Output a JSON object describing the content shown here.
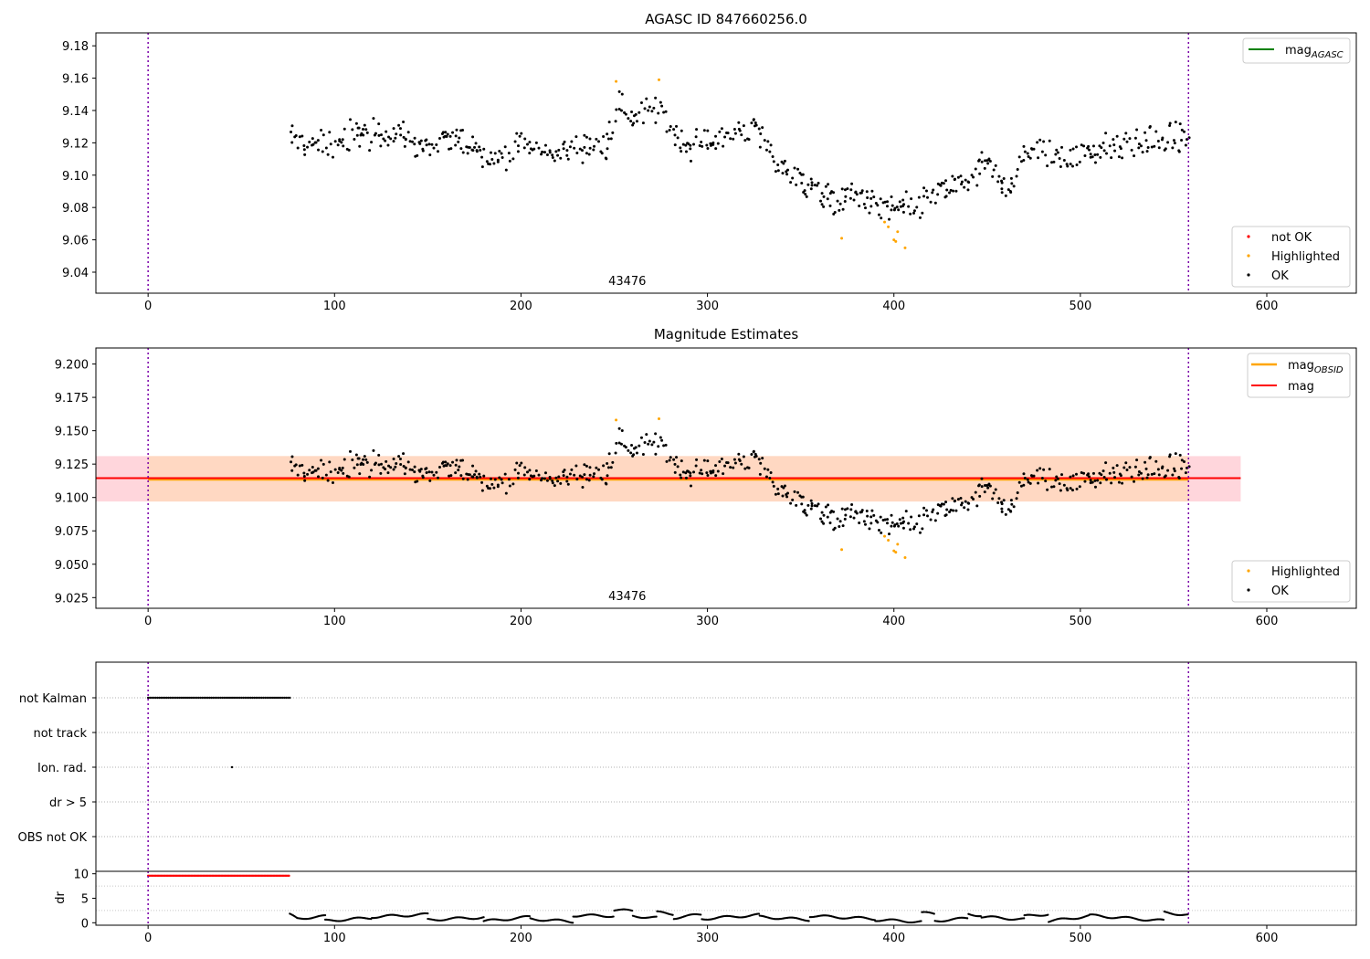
{
  "chart_data": [
    {
      "type": "scatter",
      "title": "AGASC ID 847660256.0",
      "xlim": [
        -28,
        648
      ],
      "ylim": [
        9.027,
        9.188
      ],
      "xticks": [
        0,
        100,
        200,
        300,
        400,
        500,
        600
      ],
      "yticks": [
        9.04,
        9.06,
        9.08,
        9.1,
        9.12,
        9.14,
        9.16,
        9.18
      ],
      "ytick_decimals": 2,
      "obsid_label": "43476",
      "obsid_label_x": 280,
      "vlines": [
        0,
        558
      ],
      "series": [
        {
          "name": "not OK",
          "color": "#ff0000"
        },
        {
          "name": "Highlighted",
          "color": "#ffa500"
        },
        {
          "name": "OK",
          "color": "#000000"
        }
      ],
      "lines": [
        {
          "name": "mag",
          "name_sub": "AGASC",
          "color": "#008000",
          "value": null
        }
      ],
      "legend_top": "top-right",
      "legend_bottom": "bottom-right"
    },
    {
      "type": "scatter",
      "title": "Magnitude Estimates",
      "xlim": [
        -28,
        648
      ],
      "ylim": [
        9.017,
        9.212
      ],
      "xticks": [
        0,
        100,
        200,
        300,
        400,
        500,
        600
      ],
      "yticks": [
        9.025,
        9.05,
        9.075,
        9.1,
        9.125,
        9.15,
        9.175,
        9.2
      ],
      "ytick_decimals": 3,
      "obsid_label": "43476",
      "obsid_label_x": 280,
      "vlines": [
        0,
        558
      ],
      "band_outer": {
        "x": [
          -28,
          586
        ],
        "y": [
          9.097,
          9.131
        ],
        "color": "#ffd6dc"
      },
      "band_inner": {
        "x": [
          0,
          558
        ],
        "y": [
          9.097,
          9.131
        ],
        "color": "#ffd8c2"
      },
      "series": [
        {
          "name": "Highlighted",
          "color": "#ffa500"
        },
        {
          "name": "OK",
          "color": "#000000"
        }
      ],
      "lines": [
        {
          "name": "mag",
          "name_sub": "OBSID",
          "color": "#ffa500",
          "value": 9.1135,
          "x": [
            0,
            558
          ]
        },
        {
          "name": "mag",
          "name_sub": "",
          "color": "#ff0000",
          "value": 9.1145,
          "x": [
            -28,
            586
          ]
        }
      ],
      "legend_top": "top-right",
      "legend_bottom": "bottom-right"
    },
    {
      "type": "scatter",
      "title": "",
      "xlim": [
        -28,
        648
      ],
      "categories": [
        "not Kalman",
        "not track",
        "Ion. rad.",
        "dr > 5",
        "OBS not OK"
      ],
      "flags": [
        {
          "category": "not Kalman",
          "x_range": [
            0,
            76
          ],
          "step": 1
        },
        {
          "category": "Ion. rad.",
          "x": [
            45
          ]
        }
      ],
      "vlines": [
        0,
        558
      ]
    },
    {
      "type": "scatter",
      "title": "",
      "ylabel": "dr",
      "xlim": [
        -28,
        648
      ],
      "ylim": [
        -0.5,
        10.5
      ],
      "xticks": [
        0,
        100,
        200,
        300,
        400,
        500,
        600
      ],
      "yticks": [
        0,
        5,
        10
      ],
      "vlines": [
        0,
        558
      ],
      "capped_points": {
        "x_range": [
          0,
          76
        ],
        "value": 9.6,
        "color": "#ff0000"
      },
      "dr_series": {
        "x_range": [
          76,
          558
        ],
        "color": "#000000",
        "segments": [
          {
            "x": [
              76,
              80
            ],
            "y": [
              1.6,
              0.9
            ]
          },
          {
            "x": [
              80,
              95
            ],
            "y": [
              0.9,
              1.3
            ]
          },
          {
            "x": [
              95,
              120
            ],
            "y": [
              0.4,
              1.0
            ]
          },
          {
            "x": [
              120,
              150
            ],
            "y": [
              1.2,
              1.7
            ]
          },
          {
            "x": [
              150,
              180
            ],
            "y": [
              0.6,
              1.1
            ]
          },
          {
            "x": [
              180,
              205
            ],
            "y": [
              0.3,
              1.2
            ]
          },
          {
            "x": [
              205,
              228
            ],
            "y": [
              0.8,
              0.2
            ]
          },
          {
            "x": [
              228,
              250
            ],
            "y": [
              1.5,
              1.4
            ]
          },
          {
            "x": [
              250,
              260
            ],
            "y": [
              2.6,
              2.4
            ]
          },
          {
            "x": [
              260,
              273
            ],
            "y": [
              1.4,
              1.0
            ]
          },
          {
            "x": [
              273,
              282
            ],
            "y": [
              2.1,
              1.8
            ]
          },
          {
            "x": [
              282,
              297
            ],
            "y": [
              1.0,
              1.7
            ]
          },
          {
            "x": [
              297,
              328
            ],
            "y": [
              0.8,
              1.6
            ]
          },
          {
            "x": [
              328,
              355
            ],
            "y": [
              1.2,
              0.6
            ]
          },
          {
            "x": [
              355,
              390
            ],
            "y": [
              1.4,
              0.8
            ]
          },
          {
            "x": [
              390,
              415
            ],
            "y": [
              0.6,
              0.2
            ]
          },
          {
            "x": [
              415,
              422
            ],
            "y": [
              2.0,
              1.8
            ]
          },
          {
            "x": [
              422,
              440
            ],
            "y": [
              0.4,
              0.9
            ]
          },
          {
            "x": [
              440,
              447
            ],
            "y": [
              1.8,
              1.5
            ]
          },
          {
            "x": [
              447,
              470
            ],
            "y": [
              1.2,
              0.7
            ]
          },
          {
            "x": [
              470,
              483
            ],
            "y": [
              1.3,
              1.8
            ]
          },
          {
            "x": [
              483,
              505
            ],
            "y": [
              0.3,
              1.4
            ]
          },
          {
            "x": [
              505,
              545
            ],
            "y": [
              1.5,
              0.4
            ]
          },
          {
            "x": [
              545,
              558
            ],
            "y": [
              2.1,
              1.6
            ]
          }
        ]
      }
    }
  ],
  "magnitude_trace": {
    "x_range": [
      76,
      558
    ],
    "ok_color": "#000000",
    "ok_knots_x": [
      76,
      90,
      110,
      130,
      150,
      170,
      185,
      200,
      215,
      230,
      245,
      252,
      260,
      275,
      285,
      300,
      315,
      325,
      335,
      350,
      365,
      380,
      395,
      405,
      415,
      430,
      440,
      450,
      460,
      465,
      470,
      485,
      500,
      520,
      540,
      558
    ],
    "ok_knots_y": [
      9.122,
      9.118,
      9.124,
      9.126,
      9.117,
      9.122,
      9.11,
      9.12,
      9.113,
      9.117,
      9.118,
      9.143,
      9.136,
      9.14,
      9.12,
      9.12,
      9.127,
      9.13,
      9.11,
      9.097,
      9.084,
      9.088,
      9.078,
      9.079,
      9.083,
      9.092,
      9.098,
      9.107,
      9.092,
      9.097,
      9.116,
      9.112,
      9.114,
      9.118,
      9.122,
      9.122
    ],
    "ok_scatter": 0.008,
    "highlighted": [
      {
        "x": 251,
        "y": 9.158
      },
      {
        "x": 274,
        "y": 9.159
      },
      {
        "x": 372,
        "y": 9.061
      },
      {
        "x": 395,
        "y": 9.071
      },
      {
        "x": 397,
        "y": 9.068
      },
      {
        "x": 400,
        "y": 9.06
      },
      {
        "x": 401,
        "y": 9.059
      },
      {
        "x": 402,
        "y": 9.065
      },
      {
        "x": 406,
        "y": 9.055
      }
    ]
  }
}
